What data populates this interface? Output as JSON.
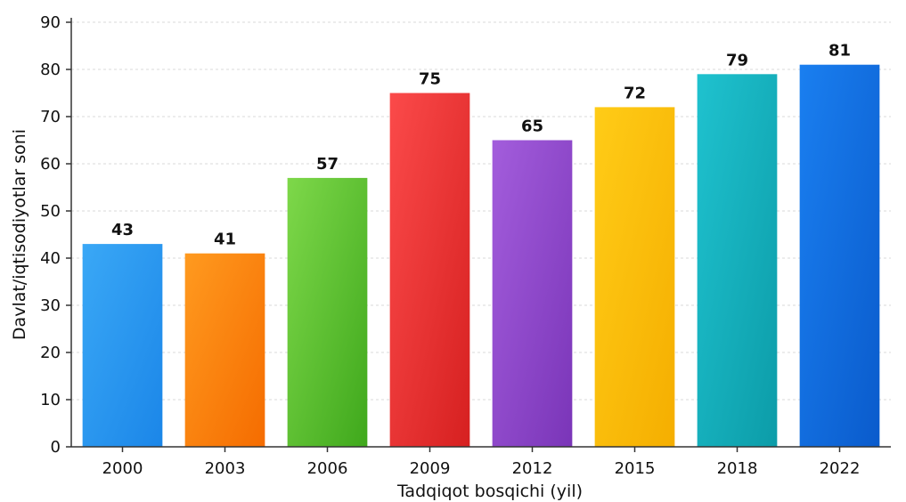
{
  "chart_data": {
    "type": "bar",
    "categories": [
      "2000",
      "2003",
      "2006",
      "2009",
      "2012",
      "2015",
      "2018",
      "2022"
    ],
    "values": [
      43,
      41,
      57,
      75,
      65,
      72,
      79,
      81
    ],
    "data_labels": [
      "43",
      "41",
      "57",
      "75",
      "65",
      "72",
      "79",
      "81"
    ],
    "bar_colors": [
      [
        "#3aa8f6",
        "#1b86e8"
      ],
      [
        "#ff9a1f",
        "#f56c00"
      ],
      [
        "#7ed84a",
        "#3fa81c"
      ],
      [
        "#fb4a4a",
        "#d62020"
      ],
      [
        "#a35ddc",
        "#7a35b8"
      ],
      [
        "#ffcc17",
        "#f5ae00"
      ],
      [
        "#1fc2cf",
        "#0c9ca8"
      ],
      [
        "#1a7ff0",
        "#0a5bcc"
      ]
    ],
    "xlabel": "Tadqiqot bosqichi (yil)",
    "ylabel": "Davlat/iqtisodiyotlar soni",
    "ylim": [
      0,
      90
    ],
    "yticks": [
      "0",
      "10",
      "20",
      "30",
      "40",
      "50",
      "60",
      "70",
      "80",
      "90"
    ],
    "grid": true,
    "legend": "none"
  }
}
